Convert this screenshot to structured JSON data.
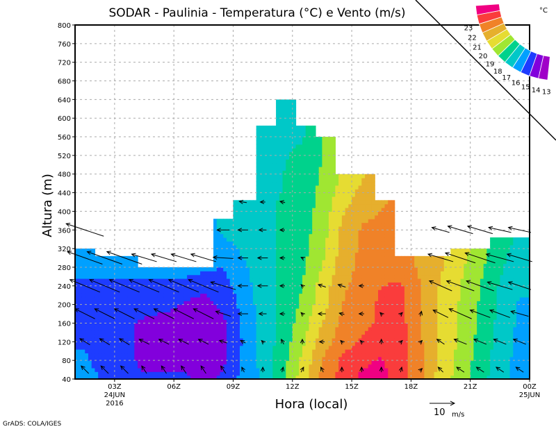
{
  "chart_data": {
    "type": "heatmap",
    "title": "SODAR - Paulinia - Temperatura (°C) e Vento (m/s)",
    "xlabel": "Hora (local)",
    "ylabel": "Altura (m)",
    "footer": "GrADS: COLA/IGES",
    "grid": true,
    "ylim": [
      40,
      800
    ],
    "yticks": [
      40,
      80,
      120,
      160,
      200,
      240,
      280,
      320,
      360,
      400,
      440,
      480,
      520,
      560,
      600,
      640,
      680,
      720,
      760,
      800
    ],
    "xlim_hours": [
      1,
      24
    ],
    "xticks": [
      {
        "hour": 3,
        "label": "03Z",
        "sub1": "24JUN",
        "sub2": "2016"
      },
      {
        "hour": 6,
        "label": "06Z"
      },
      {
        "hour": 9,
        "label": "09Z"
      },
      {
        "hour": 12,
        "label": "12Z"
      },
      {
        "hour": 15,
        "label": "15Z"
      },
      {
        "hour": 18,
        "label": "18Z"
      },
      {
        "hour": 21,
        "label": "21Z"
      },
      {
        "hour": 24,
        "label": "00Z",
        "sub1": "25JUN"
      }
    ],
    "legend": {
      "unit": "°C",
      "placement": "top-right",
      "levels": [
        13,
        14,
        15,
        16,
        17,
        18,
        19,
        20,
        21,
        22,
        23
      ],
      "colors": [
        "#a000c8",
        "#8200dc",
        "#1e3cff",
        "#00a0ff",
        "#00c8c8",
        "#00d28c",
        "#a0e632",
        "#e6dc32",
        "#e6af2d",
        "#f08228",
        "#fa3c3c",
        "#f00082"
      ]
    },
    "wind_reference": {
      "label": "10",
      "unit": "m/s",
      "speed": 10
    },
    "temperature": {
      "column_hours": [
        1.5,
        2.5,
        3.5,
        4.5,
        5.5,
        6.5,
        7.5,
        8.5,
        9.5,
        10.5,
        11.5,
        12.5,
        13.5,
        14.5,
        15.5,
        16.5,
        17.5,
        18.5,
        19.5,
        20.5,
        21.5,
        22.5,
        23.5
      ],
      "heights": [
        40,
        80,
        120,
        160,
        200,
        240,
        280,
        320,
        360,
        400,
        440,
        480,
        520,
        560,
        600,
        640
      ],
      "column_top": [
        320,
        300,
        300,
        280,
        280,
        280,
        280,
        380,
        420,
        580,
        640,
        580,
        560,
        480,
        480,
        420,
        300,
        300,
        300,
        320,
        320,
        340,
        340
      ],
      "values": [
        [
          15.5,
          15.2,
          14.8,
          14.7,
          14.6,
          14.8,
          15.3,
          15.7
        ],
        [
          14.8,
          14.5,
          14.4,
          14.4,
          14.5,
          14.7,
          15.4,
          16.2
        ],
        [
          14.5,
          14.4,
          14.3,
          14.3,
          14.4,
          14.6,
          15.5,
          16.3
        ],
        [
          14.2,
          13.7,
          13.6,
          13.8,
          14.4,
          14.7,
          15.5
        ],
        [
          14.2,
          13.6,
          13.5,
          13.6,
          14.3,
          14.7,
          15.6
        ],
        [
          14.3,
          13.5,
          13.4,
          13.5,
          13.9,
          14.6,
          15.5
        ],
        [
          13.6,
          13.5,
          13.4,
          13.5,
          13.6,
          14.3,
          15.2
        ],
        [
          14.2,
          13.8,
          13.7,
          13.8,
          14.2,
          14.6,
          15.0,
          15.5,
          16.3,
          16.6
        ],
        [
          15.3,
          15.2,
          15.1,
          15.2,
          15.3,
          15.5,
          15.8,
          16.2,
          16.6,
          16.8,
          17.1
        ],
        [
          16.2,
          16.3,
          16.4,
          16.5,
          16.5,
          16.6,
          16.6,
          16.7,
          16.8,
          16.8,
          16.9,
          16.9,
          16.9,
          16.8,
          16.8
        ],
        [
          17.8,
          17.6,
          17.4,
          17.3,
          17.3,
          17.2,
          17.2,
          17.2,
          17.1,
          17.1,
          17.0,
          17.0,
          16.9,
          16.9,
          16.8,
          16.8
        ],
        [
          19.5,
          19.2,
          18.8,
          18.5,
          18.2,
          18.0,
          17.8,
          17.7,
          17.6,
          17.5,
          17.4,
          17.3,
          17.2,
          16.9,
          16.8
        ],
        [
          21.3,
          21.0,
          20.5,
          20.0,
          19.6,
          19.4,
          19.0,
          18.7,
          18.5,
          18.4,
          18.3,
          18.1,
          18.0,
          17.9
        ],
        [
          22.3,
          22.2,
          21.5,
          21.2,
          21.0,
          20.8,
          20.5,
          20.3,
          20.2,
          19.8,
          19.4,
          19.1
        ],
        [
          23.2,
          22.8,
          22.2,
          21.6,
          21.5,
          21.4,
          21.3,
          21.2,
          21.1,
          20.8,
          20.3,
          19.8
        ],
        [
          23.3,
          23.1,
          22.6,
          22.3,
          22.2,
          22.0,
          21.7,
          21.3,
          21.2,
          21.0,
          20.8
        ],
        [
          22.5,
          22.4,
          22.4,
          22.3,
          22.2,
          22.1,
          21.6,
          21.3
        ],
        [
          21.3,
          21.2,
          21.1,
          21.1,
          21.0,
          21.0,
          20.8,
          20.6
        ],
        [
          19.5,
          19.7,
          19.8,
          19.8,
          19.8,
          19.9,
          20.1,
          20.2
        ],
        [
          18.6,
          18.7,
          18.8,
          18.8,
          18.9,
          19.0,
          19.2,
          19.5
        ],
        [
          17.4,
          17.5,
          17.7,
          17.8,
          17.9,
          18.0,
          18.2,
          18.4
        ],
        [
          16.4,
          16.5,
          16.6,
          16.7,
          16.8,
          16.9,
          17.2,
          17.4,
          17.6
        ],
        [
          15.6,
          15.6,
          15.7,
          15.8,
          15.9,
          16.1,
          16.3,
          16.6,
          16.9
        ]
      ]
    },
    "wind": {
      "heights": [
        60,
        120,
        180,
        240,
        300,
        360,
        420
      ],
      "uv": [
        [
          [
            -3,
            3
          ],
          [
            -4,
            2.5
          ],
          [
            -8,
            4
          ],
          [
            -12,
            5
          ],
          [
            -14,
            5
          ],
          [
            -15,
            5
          ]
        ],
        [
          [
            -3,
            3
          ],
          [
            -4,
            2.5
          ],
          [
            -8,
            4
          ],
          [
            -12,
            5
          ],
          [
            -14,
            5
          ]
        ],
        [
          [
            -3,
            3
          ],
          [
            -4,
            2.5
          ],
          [
            -8,
            4
          ],
          [
            -12,
            5
          ],
          [
            -14,
            5
          ]
        ],
        [
          [
            -2,
            3
          ],
          [
            -4,
            2
          ],
          [
            -8,
            4
          ],
          [
            -12,
            5
          ],
          [
            -10,
            3
          ]
        ],
        [
          [
            -2,
            3
          ],
          [
            -4,
            2
          ],
          [
            -8,
            4
          ],
          [
            -12,
            5
          ],
          [
            -10,
            3
          ]
        ],
        [
          [
            -2,
            3
          ],
          [
            -4,
            2
          ],
          [
            -8,
            4
          ],
          [
            -12,
            5
          ],
          [
            -10,
            3
          ]
        ],
        [
          [
            -2,
            3
          ],
          [
            -4,
            2
          ],
          [
            -8,
            4
          ],
          [
            -12,
            5
          ],
          [
            -10,
            3
          ]
        ],
        [
          [
            -2,
            3
          ],
          [
            -3,
            1
          ],
          [
            -6,
            2
          ],
          [
            -10,
            3
          ],
          [
            -8,
            0.5
          ],
          [
            -5,
            0
          ]
        ],
        [
          [
            -1,
            2
          ],
          [
            -2,
            1
          ],
          [
            -4,
            0
          ],
          [
            -4,
            0
          ],
          [
            -4,
            0
          ],
          [
            -4,
            0
          ],
          [
            -3,
            0.5
          ]
        ],
        [
          [
            0,
            2
          ],
          [
            -1,
            1
          ],
          [
            -3,
            0
          ],
          [
            -4,
            0
          ],
          [
            -4,
            0
          ],
          [
            -3,
            0
          ],
          [
            -2,
            0
          ]
        ],
        [
          [
            0.5,
            2
          ],
          [
            -1,
            2
          ],
          [
            -2,
            0
          ],
          [
            -2,
            0
          ],
          [
            -2,
            0
          ],
          [
            -2,
            0
          ],
          [
            -2,
            0.5
          ]
        ],
        [
          [
            1,
            2
          ],
          [
            0,
            2
          ],
          [
            -1,
            1
          ],
          [
            -1,
            1
          ],
          [
            -1,
            0.5
          ]
        ],
        [
          [
            -1,
            2
          ],
          [
            -2,
            0
          ],
          [
            -3,
            0
          ],
          [
            -3,
            1
          ]
        ],
        [
          [
            0,
            2
          ],
          [
            -1,
            1
          ],
          [
            -2,
            0.5
          ],
          [
            -3,
            1
          ]
        ],
        [
          [
            0,
            2
          ],
          [
            -1,
            1
          ],
          [
            -2,
            0
          ],
          [
            -2,
            0
          ]
        ],
        [
          [
            0,
            2
          ],
          [
            0,
            2
          ],
          [
            -1,
            1
          ]
        ],
        [
          [
            0.5,
            2
          ],
          [
            1,
            1
          ],
          [
            1,
            1
          ]
        ],
        [
          [
            1,
            1
          ],
          [
            1,
            1
          ],
          [
            0.5,
            2
          ]
        ],
        [
          [
            -2,
            2
          ],
          [
            -3,
            2
          ],
          [
            -6,
            3
          ],
          [
            -9,
            4
          ],
          [
            -10,
            3
          ],
          [
            -7,
            2
          ]
        ],
        [
          [
            -3,
            2
          ],
          [
            -5,
            2
          ],
          [
            -9,
            4
          ],
          [
            -11,
            4
          ],
          [
            -12,
            4
          ],
          [
            -10,
            3
          ]
        ],
        [
          [
            -3,
            2
          ],
          [
            -5,
            2
          ],
          [
            -8,
            3
          ],
          [
            -11,
            4
          ],
          [
            -12,
            4
          ],
          [
            -10,
            3
          ]
        ],
        [
          [
            -3,
            2
          ],
          [
            -5,
            2
          ],
          [
            -8,
            3
          ],
          [
            -10,
            3
          ],
          [
            -11,
            3
          ],
          [
            -9,
            2
          ]
        ],
        [
          [
            -3,
            2
          ],
          [
            -5,
            2
          ],
          [
            -7,
            2
          ],
          [
            -9,
            3
          ],
          [
            -10,
            3
          ],
          [
            -9,
            2
          ]
        ]
      ]
    }
  }
}
